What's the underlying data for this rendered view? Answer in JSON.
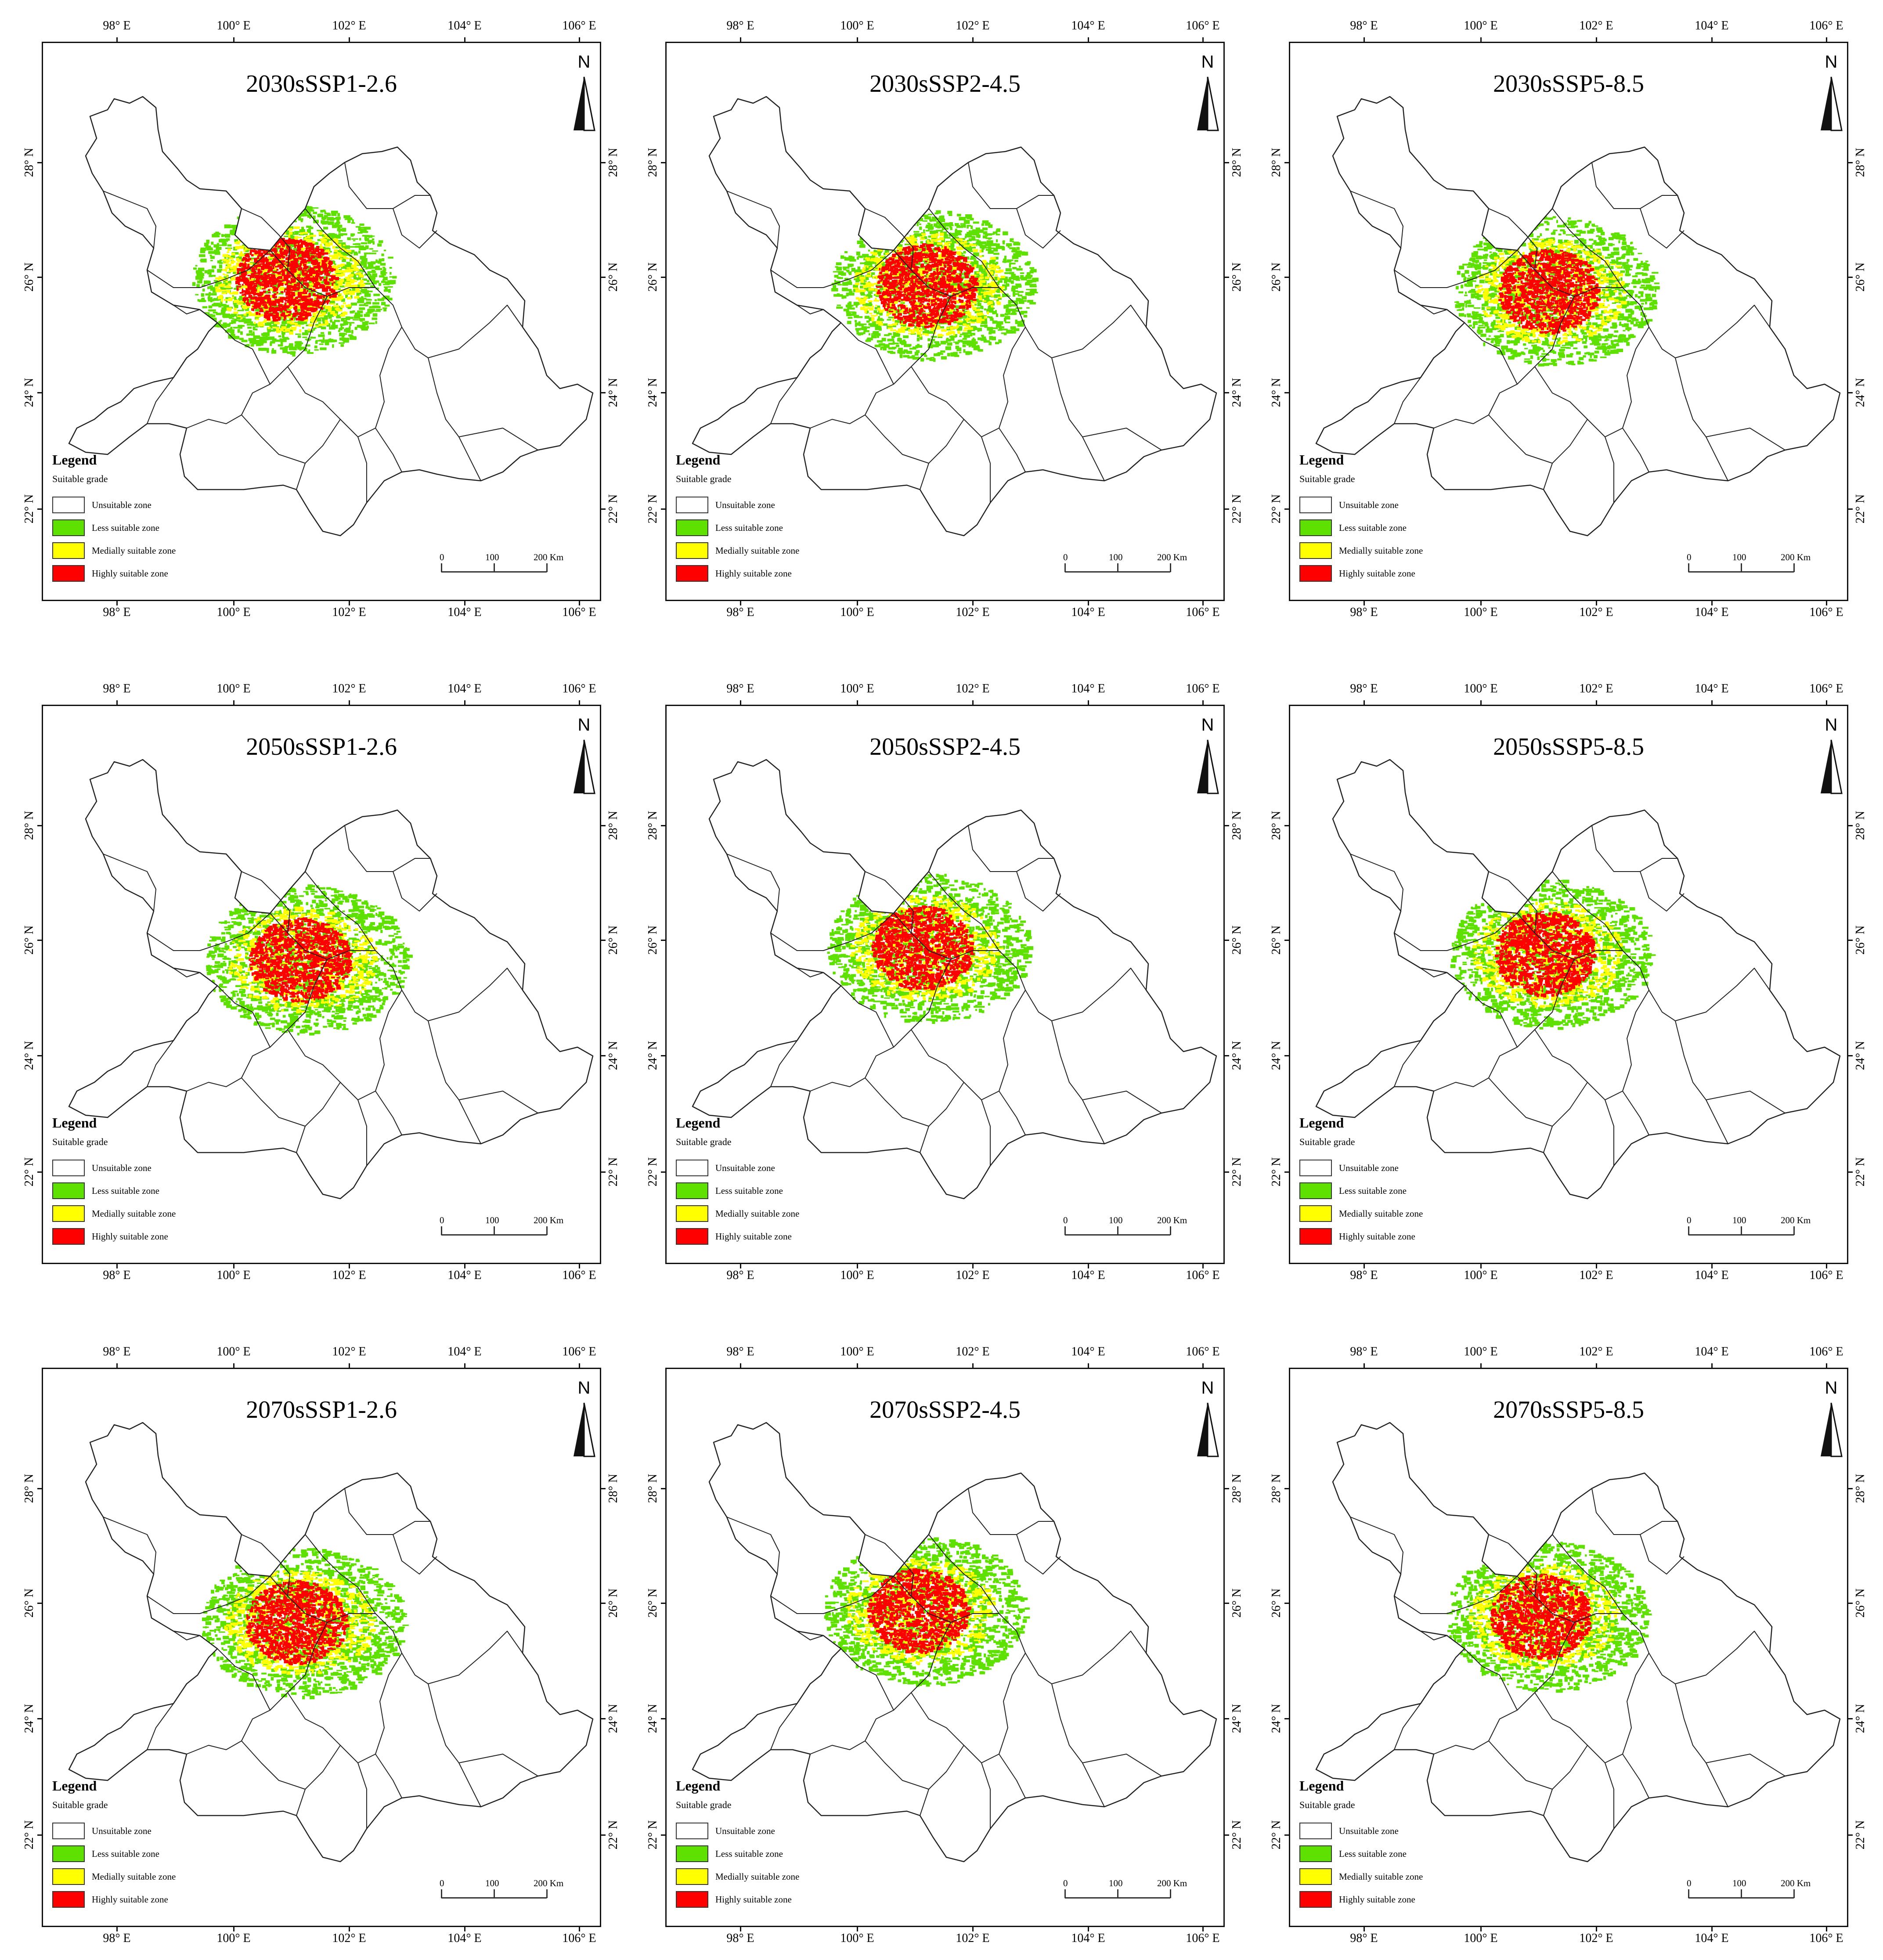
{
  "figure": {
    "axes": {
      "lon_labels": [
        "98° E",
        "100° E",
        "102° E",
        "104° E",
        "106° E"
      ],
      "lat_labels": [
        "28° N",
        "26° N",
        "24° N",
        "22° N"
      ]
    },
    "legend": {
      "title": "Legend",
      "subtitle": "Suitable grade",
      "items": [
        {
          "label": "Unsuitable zone",
          "color": "#ffffff"
        },
        {
          "label": "Less suitable zone",
          "color": "#5ee000"
        },
        {
          "label": "Medially suitable zone",
          "color": "#ffff00"
        },
        {
          "label": "Highly suitable zone",
          "color": "#ff0000"
        }
      ]
    },
    "scale_bar": {
      "labels": [
        "0",
        "100",
        "200 Km"
      ]
    },
    "north_label": "N",
    "panels": [
      {
        "title": "2030sSSP1-2.6"
      },
      {
        "title": "2030sSSP2-4.5"
      },
      {
        "title": "2030sSSP5-8.5"
      },
      {
        "title": "2050sSSP1-2.6"
      },
      {
        "title": "2050sSSP2-4.5"
      },
      {
        "title": "2050sSSP5-8.5"
      },
      {
        "title": "2070sSSP1-2.6"
      },
      {
        "title": "2070sSSP2-4.5"
      },
      {
        "title": "2070sSSP5-8.5"
      }
    ]
  }
}
